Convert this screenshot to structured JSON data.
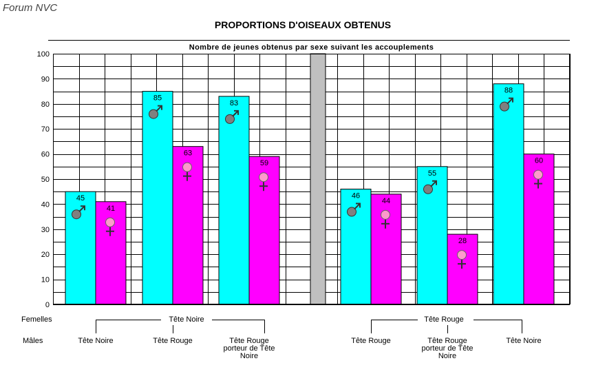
{
  "watermark": "Forum NVC",
  "chart_data": {
    "type": "bar",
    "title": "PROPORTIONS D'OISEAUX OBTENUS",
    "subtitle": "Nombre de jeunes obtenus par sexe suivant les accouplements",
    "ylim": [
      0,
      100
    ],
    "ytick_step": 10,
    "row_labels": {
      "females": "Femelles",
      "males": "Mâles"
    },
    "colors": {
      "male": "#00FFFF",
      "female": "#FF00FF",
      "separator": "#C0C0C0",
      "grid": "#000000",
      "male_symbol": "#808080",
      "female_symbol": "#FF99CC"
    },
    "series": [
      {
        "name": "male",
        "symbol": "♂"
      },
      {
        "name": "female",
        "symbol": "♀"
      }
    ],
    "groups": [
      {
        "female_parent": "Tête Noire",
        "categories": [
          {
            "male_parent": "Tête Noire",
            "label_lines": [
              "Tête Noire"
            ],
            "male": 45,
            "female": 41
          },
          {
            "male_parent": "Tête Rouge",
            "label_lines": [
              "Tête Rouge"
            ],
            "male": 85,
            "female": 63
          },
          {
            "male_parent": "Tête Rouge porteur de Tête Noire",
            "label_lines": [
              "Tête Rouge",
              "porteur de Tête",
              "Noire"
            ],
            "male": 83,
            "female": 59
          }
        ]
      },
      {
        "female_parent": "Tête Rouge",
        "categories": [
          {
            "male_parent": "Tête Rouge",
            "label_lines": [
              "Tête Rouge"
            ],
            "male": 46,
            "female": 44
          },
          {
            "male_parent": "Tête Rouge porteur de Tête Noire",
            "label_lines": [
              "Tête Rouge",
              "porteur de Tête",
              "Noire"
            ],
            "male": 55,
            "female": 28
          },
          {
            "male_parent": "Tête Noire",
            "label_lines": [
              "Tête Noire"
            ],
            "male": 88,
            "female": 60
          }
        ]
      }
    ]
  }
}
